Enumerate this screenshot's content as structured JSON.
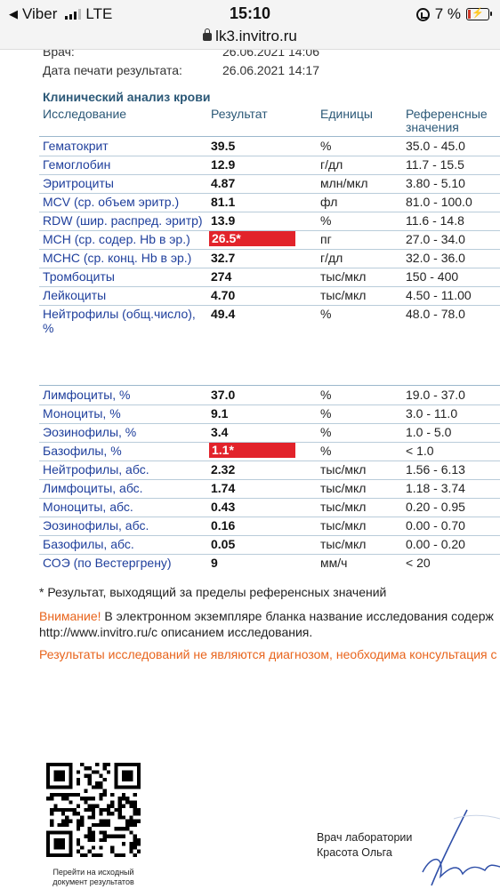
{
  "status_bar": {
    "back_app": "Viber",
    "network": "LTE",
    "time": "15:10",
    "battery": "7 %"
  },
  "browser": {
    "url": "lk3.invitro.ru"
  },
  "meta": {
    "doctor_label": "Врач:",
    "doctor_value": "26.06.2021 14:06",
    "print_label": "Дата печати результата:",
    "print_value": "26.06.2021 14:17"
  },
  "section_title": "Клинический анализ крови",
  "columns": {
    "name": "Исследование",
    "result": "Результат",
    "unit": "Единицы",
    "ref_line1": "Референсные",
    "ref_line2": "значения"
  },
  "rows": [
    {
      "name": "Гематокрит",
      "result": "39.5",
      "unit": "%",
      "ref": "35.0 - 45.0",
      "flag": false
    },
    {
      "name": "Гемоглобин",
      "result": "12.9",
      "unit": "г/дл",
      "ref": "11.7 - 15.5",
      "flag": false
    },
    {
      "name": "Эритроциты",
      "result": "4.87",
      "unit": "млн/мкл",
      "ref": "3.80 - 5.10",
      "flag": false
    },
    {
      "name": "MCV (ср. объем эритр.)",
      "result": "81.1",
      "unit": "фл",
      "ref": "81.0 - 100.0",
      "flag": false
    },
    {
      "name": "RDW (шир. распред. эритр)",
      "result": "13.9",
      "unit": "%",
      "ref": "11.6 - 14.8",
      "flag": false
    },
    {
      "name": "MCH (ср. содер. Hb в эр.)",
      "result": "26.5*",
      "unit": "пг",
      "ref": "27.0 - 34.0",
      "flag": true
    },
    {
      "name": "MCHC (ср. конц. Hb в эр.)",
      "result": "32.7",
      "unit": "г/дл",
      "ref": "32.0 - 36.0",
      "flag": false
    },
    {
      "name": "Тромбоциты",
      "result": "274",
      "unit": "тыс/мкл",
      "ref": "150 - 400",
      "flag": false
    },
    {
      "name": "Лейкоциты",
      "result": "4.70",
      "unit": "тыс/мкл",
      "ref": "4.50 - 11.00",
      "flag": false
    },
    {
      "name": "Нейтрофилы (общ.число), %",
      "result": "49.4",
      "unit": "%",
      "ref": "48.0 - 78.0",
      "flag": false
    },
    {
      "name": "Лимфоциты, %",
      "result": "37.0",
      "unit": "%",
      "ref": "19.0 - 37.0",
      "flag": false
    },
    {
      "name": "Моноциты, %",
      "result": "9.1",
      "unit": "%",
      "ref": "3.0 - 11.0",
      "flag": false
    },
    {
      "name": "Эозинофилы, %",
      "result": "3.4",
      "unit": "%",
      "ref": "1.0 - 5.0",
      "flag": false
    },
    {
      "name": "Базофилы, %",
      "result": "1.1*",
      "unit": "%",
      "ref": "< 1.0",
      "flag": true
    },
    {
      "name": "Нейтрофилы, абс.",
      "result": "2.32",
      "unit": "тыс/мкл",
      "ref": "1.56 - 6.13",
      "flag": false
    },
    {
      "name": "Лимфоциты, абс.",
      "result": "1.74",
      "unit": "тыс/мкл",
      "ref": "1.18 - 3.74",
      "flag": false
    },
    {
      "name": "Моноциты, абс.",
      "result": "0.43",
      "unit": "тыс/мкл",
      "ref": "0.20 - 0.95",
      "flag": false
    },
    {
      "name": "Эозинофилы, абс.",
      "result": "0.16",
      "unit": "тыс/мкл",
      "ref": "0.00 - 0.70",
      "flag": false
    },
    {
      "name": "Базофилы, абс.",
      "result": "0.05",
      "unit": "тыс/мкл",
      "ref": "0.00 - 0.20",
      "flag": false
    },
    {
      "name": "СОЭ (по Вестергрену)",
      "result": "9",
      "unit": "мм/ч",
      "ref": "< 20",
      "flag": false
    }
  ],
  "footnote": "* Результат, выходящий за пределы референсных значений",
  "warning": {
    "label": "Внимание!",
    "text1": " В электронном экземпляре бланка название исследования содерж",
    "text2": "http://www.invitro.ru/с описанием исследования."
  },
  "disclaimer": "Результаты исследований не являются диагнозом, необходима консультация с",
  "qr_caption": "Перейти на исходный документ результатов",
  "doctor_role": "Врач лаборатории",
  "doctor_name": "Красота Ольга",
  "colors": {
    "flag_red": "#e2232b",
    "link_blue": "#1f3f9c",
    "orange": "#e8641c",
    "header_blue": "#2b5877"
  }
}
